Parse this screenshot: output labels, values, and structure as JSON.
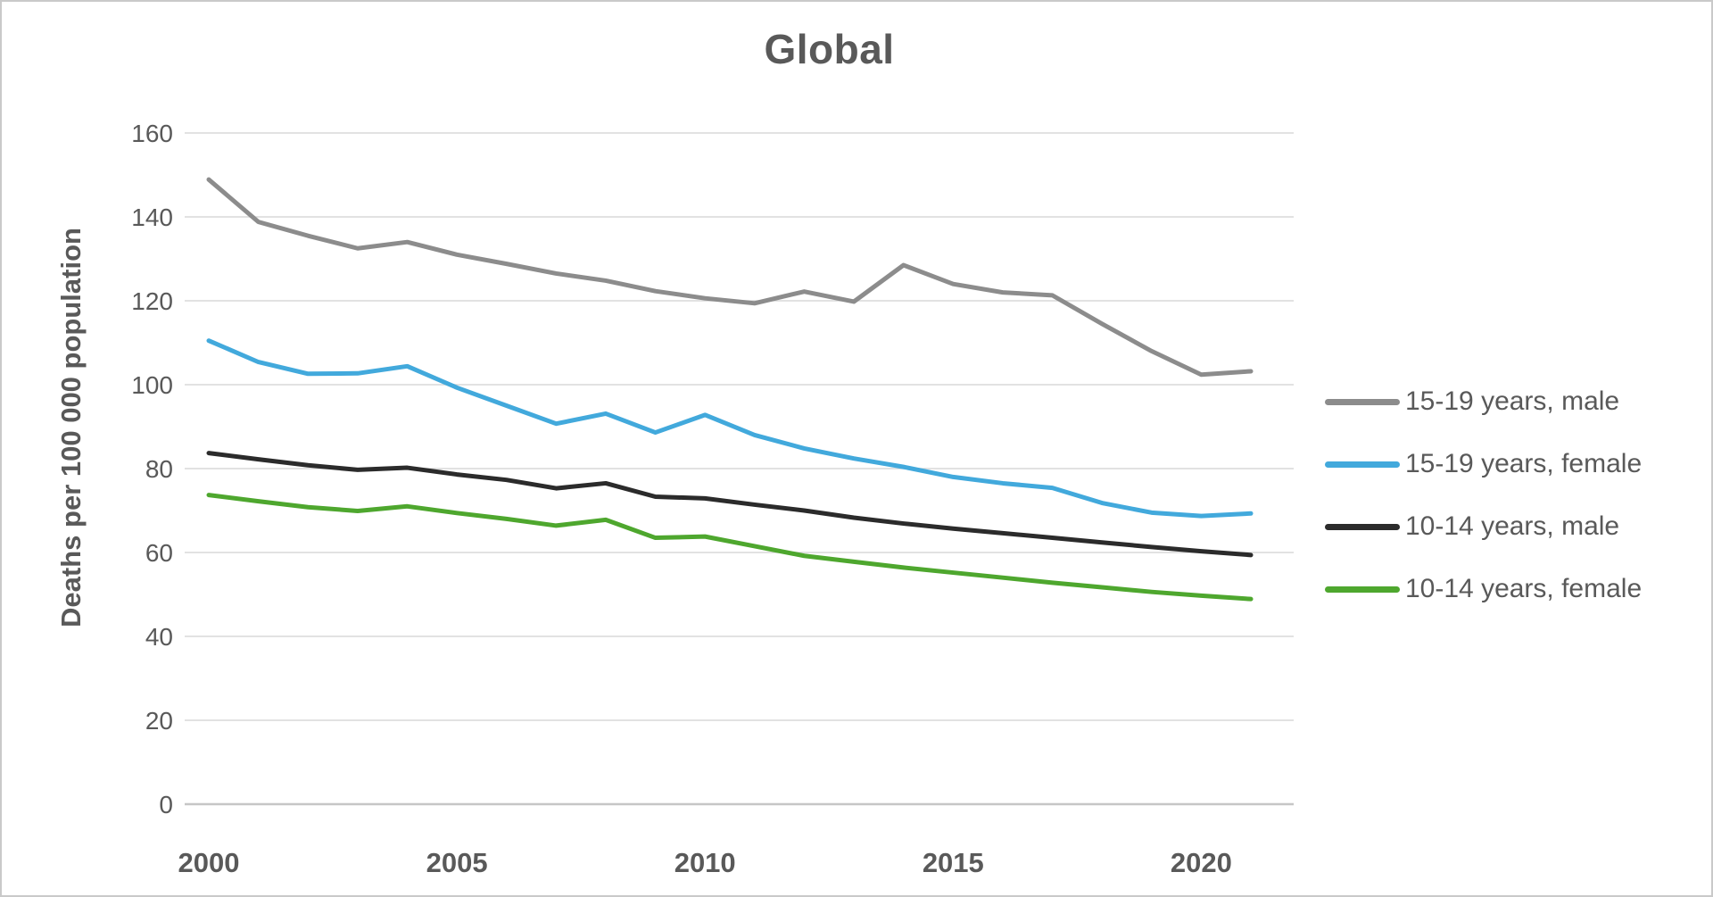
{
  "chart_data": {
    "type": "line",
    "title": "Global",
    "xlabel": "",
    "ylabel": "Deaths per 100 000 population",
    "ylim": [
      0,
      160
    ],
    "ytick_step": 20,
    "yticks": [
      0,
      20,
      40,
      60,
      80,
      100,
      120,
      140,
      160
    ],
    "xticks": [
      2000,
      2005,
      2010,
      2015,
      2020
    ],
    "xlim": [
      2000,
      2021
    ],
    "grid": "horizontal",
    "legend_position": "right",
    "x": [
      2000,
      2001,
      2002,
      2003,
      2004,
      2005,
      2006,
      2007,
      2008,
      2009,
      2010,
      2011,
      2012,
      2013,
      2014,
      2015,
      2016,
      2017,
      2018,
      2019,
      2020,
      2021
    ],
    "series": [
      {
        "name": "15-19 years, male",
        "color": "#8C8C8C",
        "values": [
          148.9,
          138.8,
          135.5,
          132.5,
          134.0,
          131.0,
          128.8,
          126.5,
          124.8,
          122.3,
          120.6,
          119.4,
          122.2,
          119.8,
          128.5,
          124.0,
          122.0,
          121.3,
          114.5,
          108.0,
          102.4,
          103.2
        ]
      },
      {
        "name": "15-19 years, female",
        "color": "#42A9DC",
        "values": [
          110.5,
          105.4,
          102.6,
          102.7,
          104.4,
          99.3,
          95.0,
          90.7,
          93.1,
          88.6,
          92.8,
          88.0,
          84.8,
          82.4,
          80.4,
          78.0,
          76.5,
          75.4,
          71.8,
          69.5,
          68.7,
          69.3
        ]
      },
      {
        "name": "10-14 years, male",
        "color": "#2B2B2B",
        "values": [
          83.7,
          82.2,
          80.8,
          79.7,
          80.2,
          78.6,
          77.3,
          75.3,
          76.5,
          73.3,
          72.9,
          71.4,
          70.0,
          68.3,
          66.9,
          65.7,
          64.6,
          63.5,
          62.4,
          61.3,
          60.3,
          59.4
        ]
      },
      {
        "name": "10-14 years, female",
        "color": "#4EA72E",
        "values": [
          73.7,
          72.2,
          70.8,
          69.9,
          71.0,
          69.4,
          68.0,
          66.4,
          67.8,
          63.5,
          63.8,
          61.5,
          59.2,
          57.8,
          56.4,
          55.2,
          54.0,
          52.8,
          51.7,
          50.6,
          49.7,
          48.9
        ]
      }
    ]
  },
  "colors": {
    "text": "#595959",
    "gridline": "#D9D9D9",
    "axis_line": "#C6C6C6",
    "background": "#FFFFFF",
    "frame": "#C9C9C9"
  }
}
